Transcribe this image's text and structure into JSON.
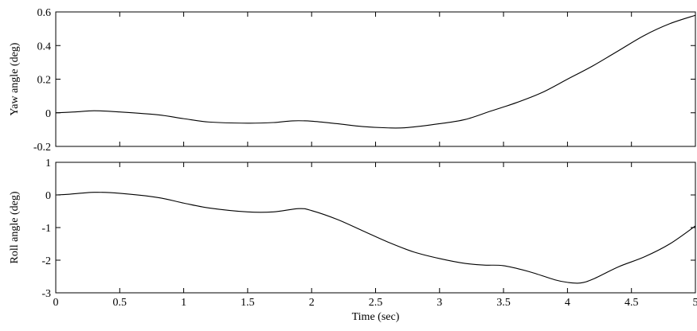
{
  "chart_data": [
    {
      "type": "line",
      "title": "",
      "xlabel": "",
      "ylabel": "Yaw angle (deg)",
      "xlim": [
        0,
        5
      ],
      "ylim": [
        -0.2,
        0.6
      ],
      "x_ticks": [
        0,
        0.5,
        1,
        1.5,
        2,
        2.5,
        3,
        3.5,
        4,
        4.5,
        5
      ],
      "y_ticks": [
        -0.2,
        0,
        0.2,
        0.4,
        0.6
      ],
      "y_tick_labels": [
        "-0.2",
        "0",
        "0.2",
        "0.4",
        "0.6"
      ],
      "grid": false,
      "series": [
        {
          "x": [
            0,
            0.15,
            0.3,
            0.5,
            0.8,
            1.0,
            1.2,
            1.5,
            1.7,
            1.85,
            2.0,
            2.2,
            2.4,
            2.6,
            2.75,
            3.0,
            3.2,
            3.4,
            3.6,
            3.8,
            4.0,
            4.2,
            4.4,
            4.6,
            4.8,
            5.0
          ],
          "y": [
            0.0,
            0.005,
            0.012,
            0.005,
            -0.012,
            -0.035,
            -0.055,
            -0.062,
            -0.058,
            -0.048,
            -0.05,
            -0.065,
            -0.082,
            -0.09,
            -0.088,
            -0.065,
            -0.04,
            0.01,
            0.06,
            0.12,
            0.2,
            0.28,
            0.37,
            0.46,
            0.53,
            0.58
          ]
        }
      ]
    },
    {
      "type": "line",
      "title": "",
      "xlabel": "Time (sec)",
      "ylabel": "Roll angle (deg)",
      "xlim": [
        0,
        5
      ],
      "ylim": [
        -3,
        1
      ],
      "x_ticks": [
        0,
        0.5,
        1,
        1.5,
        2,
        2.5,
        3,
        3.5,
        4,
        4.5,
        5
      ],
      "x_tick_labels": [
        "0",
        "0.5",
        "1",
        "1.5",
        "2",
        "2.5",
        "3",
        "3.5",
        "4",
        "4.5",
        "5"
      ],
      "y_ticks": [
        -3,
        -2,
        -1,
        0,
        1
      ],
      "y_tick_labels": [
        "-3",
        "-2",
        "-1",
        "0",
        "1"
      ],
      "grid": false,
      "series": [
        {
          "x": [
            0,
            0.1,
            0.3,
            0.5,
            0.8,
            1.0,
            1.2,
            1.5,
            1.7,
            1.9,
            2.0,
            2.2,
            2.4,
            2.6,
            2.8,
            3.0,
            3.2,
            3.35,
            3.5,
            3.7,
            3.9,
            4.0,
            4.1,
            4.2,
            4.4,
            4.6,
            4.8,
            5.0
          ],
          "y": [
            0.0,
            0.02,
            0.08,
            0.05,
            -0.08,
            -0.25,
            -0.4,
            -0.52,
            -0.52,
            -0.42,
            -0.48,
            -0.75,
            -1.1,
            -1.45,
            -1.75,
            -1.95,
            -2.1,
            -2.15,
            -2.17,
            -2.35,
            -2.6,
            -2.68,
            -2.7,
            -2.58,
            -2.2,
            -1.9,
            -1.5,
            -0.95
          ]
        }
      ]
    }
  ]
}
